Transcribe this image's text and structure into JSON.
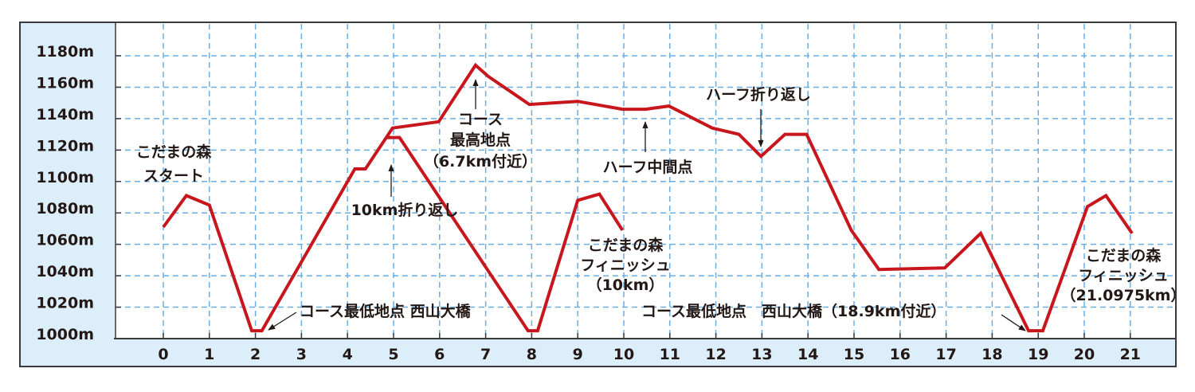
{
  "chart_data": {
    "type": "line",
    "title": "",
    "xlabel": "",
    "ylabel": "",
    "xlim": [
      0,
      22
    ],
    "ylim": [
      1000,
      1180
    ],
    "x_ticks": [
      "0",
      "1",
      "2",
      "3",
      "4",
      "5",
      "6",
      "7",
      "8",
      "9",
      "10",
      "11",
      "12",
      "13",
      "14",
      "15",
      "16",
      "17",
      "18",
      "19",
      "20",
      "21"
    ],
    "y_ticks": [
      "1000m",
      "1020m",
      "1040m",
      "1060m",
      "1080m",
      "1100m",
      "1120m",
      "1140m",
      "1160m",
      "1180m"
    ],
    "grid": true,
    "colors": {
      "line": "#c8161d",
      "grid": "#6aaee6",
      "axis_band": "#dceef9",
      "frame": "#3a3a3a"
    },
    "series": [
      {
        "points": [
          [
            0,
            1071
          ],
          [
            0.5,
            1091
          ],
          [
            1,
            1085
          ],
          [
            1.92,
            1005
          ],
          [
            2.14,
            1005
          ],
          [
            4.16,
            1108
          ],
          [
            4.39,
            1108
          ],
          [
            4.98,
            1134
          ],
          [
            5.98,
            1138
          ],
          [
            6.78,
            1174
          ],
          [
            7.05,
            1167
          ],
          [
            7.95,
            1149
          ],
          [
            9,
            1151
          ],
          [
            9.97,
            1146
          ],
          [
            10.47,
            1146
          ],
          [
            10.98,
            1148
          ],
          [
            11.92,
            1134
          ],
          [
            12.5,
            1130
          ],
          [
            12.98,
            1116
          ],
          [
            13.5,
            1130
          ],
          [
            13.97,
            1130
          ],
          [
            14.94,
            1069
          ],
          [
            15.54,
            1044
          ],
          [
            16.97,
            1045
          ],
          [
            17.75,
            1067
          ],
          [
            18.79,
            1005
          ],
          [
            19.1,
            1005
          ],
          [
            20.07,
            1084
          ],
          [
            20.47,
            1091
          ],
          [
            21.04,
            1067
          ]
        ]
      },
      {
        "points": [
          [
            4.86,
            1128
          ],
          [
            5.13,
            1128
          ],
          [
            7.92,
            1005
          ],
          [
            8.13,
            1005
          ],
          [
            9,
            1088
          ],
          [
            9.47,
            1092
          ],
          [
            9.97,
            1069
          ]
        ]
      }
    ],
    "annotations": [
      {
        "lines": [
          "こだまの森",
          "スタート"
        ]
      },
      {
        "lines": [
          "コース",
          "最高地点",
          "（6.7km付近）"
        ]
      },
      {
        "lines": [
          "10km折り返し"
        ]
      },
      {
        "lines": [
          "コース最低地点 西山大橋"
        ]
      },
      {
        "lines": [
          "ハーフ中間点"
        ]
      },
      {
        "lines": [
          "ハーフ折り返し"
        ]
      },
      {
        "lines": [
          "こだまの森",
          "フィニッシュ",
          "（10km）"
        ]
      },
      {
        "lines": [
          "コース最低地点　西山大橋（18.9km付近）"
        ]
      },
      {
        "lines": [
          "こだまの森",
          "フィニッシュ",
          "（21.0975km）"
        ]
      }
    ]
  }
}
